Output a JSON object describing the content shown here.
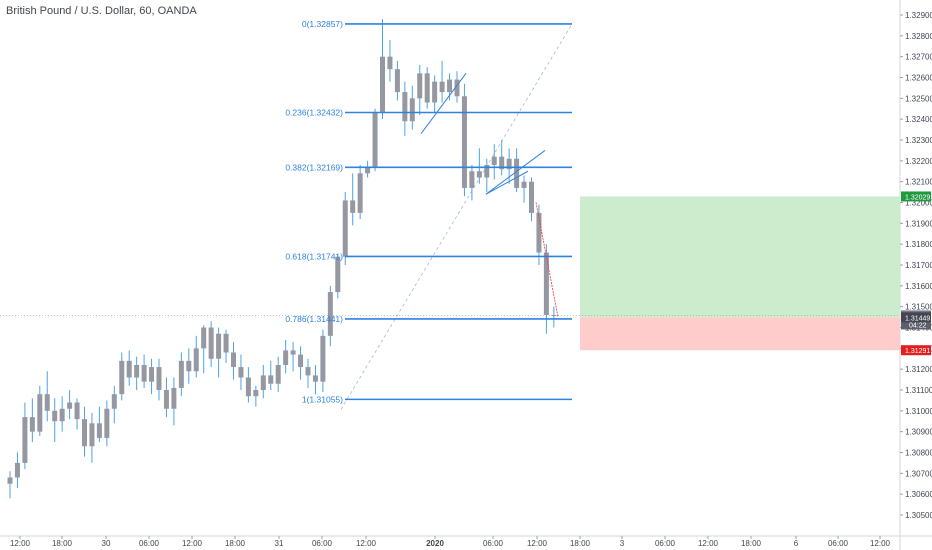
{
  "header": {
    "title": "British Pound / U.S. Dollar, 60, OANDA"
  },
  "colors": {
    "bar": "#9598a1",
    "wick": "#4aa3e8",
    "fib": "#2e82e0",
    "profit": "#cdeccd",
    "loss": "#ffcccc",
    "target_tag": "#1f9a3f",
    "stop_tag": "#e31e1e",
    "price_tag": "#757a86",
    "grid_guides": "#9aa0aa"
  },
  "chart_data": {
    "type": "candlestick",
    "symbol": "British Pound / U.S. Dollar",
    "interval": "60",
    "source": "OANDA",
    "price_axis": {
      "ticks": [
        "1.32900",
        "1.32800",
        "1.32700",
        "1.32600",
        "1.32500",
        "1.32400",
        "1.32300",
        "1.32200",
        "1.32100",
        "1.32000",
        "1.31900",
        "1.31800",
        "1.31700",
        "1.31600",
        "1.31500",
        "1.31400",
        "1.31300",
        "1.31200",
        "1.31100",
        "1.31000",
        "1.30900",
        "1.30800",
        "1.30700",
        "1.30600",
        "1.30500"
      ],
      "range": [
        1.3046,
        1.329
      ]
    },
    "time_axis": {
      "ticks": [
        "12:00",
        "18:00",
        "30",
        "06:00",
        "12:00",
        "18:00",
        "31",
        "06:00",
        "12:00",
        "2020",
        "06:00",
        "12:00",
        "18:00",
        "3",
        "06:00",
        "12:00",
        "18:00",
        "6",
        "06:00",
        "12:00"
      ]
    },
    "fib_retracement": {
      "levels": [
        {
          "ratio": "0",
          "price": "1.32857",
          "label": "0(1.32857)"
        },
        {
          "ratio": "0.236",
          "price": "1.32432",
          "label": "0.236(1.32432)"
        },
        {
          "ratio": "0.382",
          "price": "1.32169",
          "label": "0.382(1.32169)"
        },
        {
          "ratio": "0.618",
          "price": "1.31741",
          "label": "0.618(1.31741)"
        },
        {
          "ratio": "0.786",
          "price": "1.31441",
          "label": "0.786(1.31441)"
        },
        {
          "ratio": "1",
          "price": "1.31055",
          "label": "1(1.31055)"
        }
      ]
    },
    "position": {
      "entry": 1.31449,
      "target": 1.32029,
      "stop": 1.31291,
      "target_label": "1.32029",
      "entry_label": "1.31449",
      "stop_label": "1.31291",
      "last_label": "1.31458",
      "countdown": "04:22"
    },
    "candles": [
      {
        "o": 1.3065,
        "h": 1.3071,
        "l": 1.3058,
        "c": 1.3068
      },
      {
        "o": 1.3068,
        "h": 1.308,
        "l": 1.3063,
        "c": 1.3075
      },
      {
        "o": 1.3075,
        "h": 1.3104,
        "l": 1.3072,
        "c": 1.3097
      },
      {
        "o": 1.3097,
        "h": 1.3106,
        "l": 1.3085,
        "c": 1.309
      },
      {
        "o": 1.309,
        "h": 1.3112,
        "l": 1.3088,
        "c": 1.3108
      },
      {
        "o": 1.3108,
        "h": 1.3119,
        "l": 1.3095,
        "c": 1.31
      },
      {
        "o": 1.31,
        "h": 1.3106,
        "l": 1.3085,
        "c": 1.3095
      },
      {
        "o": 1.3095,
        "h": 1.3107,
        "l": 1.309,
        "c": 1.3101
      },
      {
        "o": 1.3101,
        "h": 1.311,
        "l": 1.3096,
        "c": 1.3104
      },
      {
        "o": 1.3104,
        "h": 1.3106,
        "l": 1.3091,
        "c": 1.3096
      },
      {
        "o": 1.3096,
        "h": 1.3102,
        "l": 1.3078,
        "c": 1.3083
      },
      {
        "o": 1.3083,
        "h": 1.3099,
        "l": 1.3075,
        "c": 1.3094
      },
      {
        "o": 1.3094,
        "h": 1.3102,
        "l": 1.3085,
        "c": 1.3087
      },
      {
        "o": 1.3087,
        "h": 1.3105,
        "l": 1.3083,
        "c": 1.3101
      },
      {
        "o": 1.3101,
        "h": 1.3112,
        "l": 1.3094,
        "c": 1.3108
      },
      {
        "o": 1.3108,
        "h": 1.3128,
        "l": 1.3105,
        "c": 1.3124
      },
      {
        "o": 1.3124,
        "h": 1.3129,
        "l": 1.3112,
        "c": 1.3116
      },
      {
        "o": 1.3116,
        "h": 1.3126,
        "l": 1.311,
        "c": 1.3122
      },
      {
        "o": 1.3122,
        "h": 1.3127,
        "l": 1.3111,
        "c": 1.3114
      },
      {
        "o": 1.3114,
        "h": 1.3125,
        "l": 1.3108,
        "c": 1.3121
      },
      {
        "o": 1.3121,
        "h": 1.3125,
        "l": 1.3105,
        "c": 1.311
      },
      {
        "o": 1.311,
        "h": 1.3116,
        "l": 1.3097,
        "c": 1.3101
      },
      {
        "o": 1.3101,
        "h": 1.3116,
        "l": 1.3093,
        "c": 1.3111
      },
      {
        "o": 1.3111,
        "h": 1.3128,
        "l": 1.3107,
        "c": 1.3124
      },
      {
        "o": 1.3124,
        "h": 1.313,
        "l": 1.3113,
        "c": 1.3119
      },
      {
        "o": 1.3119,
        "h": 1.3136,
        "l": 1.3116,
        "c": 1.313
      },
      {
        "o": 1.313,
        "h": 1.3141,
        "l": 1.3118,
        "c": 1.314
      },
      {
        "o": 1.314,
        "h": 1.3143,
        "l": 1.3121,
        "c": 1.3125
      },
      {
        "o": 1.3125,
        "h": 1.314,
        "l": 1.3116,
        "c": 1.3137
      },
      {
        "o": 1.3137,
        "h": 1.3139,
        "l": 1.3123,
        "c": 1.3128
      },
      {
        "o": 1.3128,
        "h": 1.3133,
        "l": 1.3115,
        "c": 1.3121
      },
      {
        "o": 1.3121,
        "h": 1.3127,
        "l": 1.311,
        "c": 1.3116
      },
      {
        "o": 1.3116,
        "h": 1.3121,
        "l": 1.3104,
        "c": 1.3107
      },
      {
        "o": 1.3107,
        "h": 1.3112,
        "l": 1.3102,
        "c": 1.311
      },
      {
        "o": 1.311,
        "h": 1.3122,
        "l": 1.3106,
        "c": 1.3117
      },
      {
        "o": 1.3117,
        "h": 1.3124,
        "l": 1.311,
        "c": 1.3113
      },
      {
        "o": 1.3113,
        "h": 1.3126,
        "l": 1.3109,
        "c": 1.3122
      },
      {
        "o": 1.3122,
        "h": 1.3134,
        "l": 1.3118,
        "c": 1.3129
      },
      {
        "o": 1.3129,
        "h": 1.3133,
        "l": 1.3119,
        "c": 1.3127
      },
      {
        "o": 1.3127,
        "h": 1.3131,
        "l": 1.3115,
        "c": 1.3121
      },
      {
        "o": 1.3121,
        "h": 1.3125,
        "l": 1.3111,
        "c": 1.3117
      },
      {
        "o": 1.3117,
        "h": 1.3122,
        "l": 1.3108,
        "c": 1.3114
      },
      {
        "o": 1.3114,
        "h": 1.3139,
        "l": 1.3109,
        "c": 1.3136
      },
      {
        "o": 1.3136,
        "h": 1.316,
        "l": 1.3131,
        "c": 1.3157
      },
      {
        "o": 1.3157,
        "h": 1.3175,
        "l": 1.3154,
        "c": 1.3174
      },
      {
        "o": 1.3174,
        "h": 1.3205,
        "l": 1.317,
        "c": 1.3201
      },
      {
        "o": 1.3201,
        "h": 1.3214,
        "l": 1.3189,
        "c": 1.3195
      },
      {
        "o": 1.3195,
        "h": 1.3218,
        "l": 1.3192,
        "c": 1.3214
      },
      {
        "o": 1.3214,
        "h": 1.322,
        "l": 1.3212,
        "c": 1.3217
      },
      {
        "o": 1.3217,
        "h": 1.3245,
        "l": 1.3215,
        "c": 1.3243
      },
      {
        "o": 1.3243,
        "h": 1.3288,
        "l": 1.324,
        "c": 1.327
      },
      {
        "o": 1.327,
        "h": 1.3278,
        "l": 1.3258,
        "c": 1.3264
      },
      {
        "o": 1.3264,
        "h": 1.3268,
        "l": 1.3249,
        "c": 1.3253
      },
      {
        "o": 1.3253,
        "h": 1.3258,
        "l": 1.3232,
        "c": 1.3239
      },
      {
        "o": 1.3239,
        "h": 1.3256,
        "l": 1.3235,
        "c": 1.325
      },
      {
        "o": 1.325,
        "h": 1.3266,
        "l": 1.3242,
        "c": 1.3262
      },
      {
        "o": 1.3262,
        "h": 1.3265,
        "l": 1.3245,
        "c": 1.3248
      },
      {
        "o": 1.3248,
        "h": 1.3261,
        "l": 1.3243,
        "c": 1.3258
      },
      {
        "o": 1.3258,
        "h": 1.3268,
        "l": 1.3248,
        "c": 1.3253
      },
      {
        "o": 1.3253,
        "h": 1.3262,
        "l": 1.3249,
        "c": 1.3259
      },
      {
        "o": 1.3259,
        "h": 1.3263,
        "l": 1.3248,
        "c": 1.3251
      },
      {
        "o": 1.3251,
        "h": 1.3257,
        "l": 1.3203,
        "c": 1.3207
      },
      {
        "o": 1.3207,
        "h": 1.3218,
        "l": 1.3201,
        "c": 1.3215
      },
      {
        "o": 1.3215,
        "h": 1.3226,
        "l": 1.3209,
        "c": 1.3212
      },
      {
        "o": 1.3212,
        "h": 1.3221,
        "l": 1.3205,
        "c": 1.3218
      },
      {
        "o": 1.3218,
        "h": 1.3228,
        "l": 1.3211,
        "c": 1.3222
      },
      {
        "o": 1.3222,
        "h": 1.323,
        "l": 1.3213,
        "c": 1.3216
      },
      {
        "o": 1.3216,
        "h": 1.3226,
        "l": 1.3209,
        "c": 1.3221
      },
      {
        "o": 1.3221,
        "h": 1.3226,
        "l": 1.3205,
        "c": 1.3207
      },
      {
        "o": 1.3207,
        "h": 1.3213,
        "l": 1.32,
        "c": 1.321
      },
      {
        "o": 1.321,
        "h": 1.3212,
        "l": 1.3191,
        "c": 1.3195
      },
      {
        "o": 1.3195,
        "h": 1.3199,
        "l": 1.317,
        "c": 1.3176
      },
      {
        "o": 1.3176,
        "h": 1.318,
        "l": 1.3137,
        "c": 1.3146
      },
      {
        "o": 1.3146,
        "h": 1.315,
        "l": 1.314,
        "c": 1.3146
      }
    ]
  }
}
